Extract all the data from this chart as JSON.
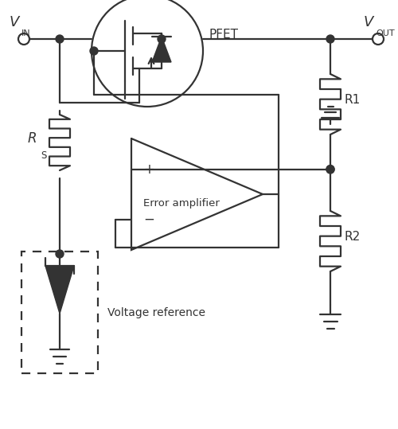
{
  "bg_color": "#ffffff",
  "line_color": "#333333",
  "line_width": 1.6,
  "fig_width": 5.0,
  "fig_height": 5.39,
  "vin_label": "V",
  "vin_sub": "IN",
  "vout_label": "V",
  "vout_sub": "OUT",
  "pfet_label": "PFET",
  "r1_label": "R1",
  "r2_label": "R2",
  "rs_label": "R",
  "rs_sub": "S",
  "error_amp_label": "Error amplifier",
  "voltage_ref_label": "Voltage reference"
}
